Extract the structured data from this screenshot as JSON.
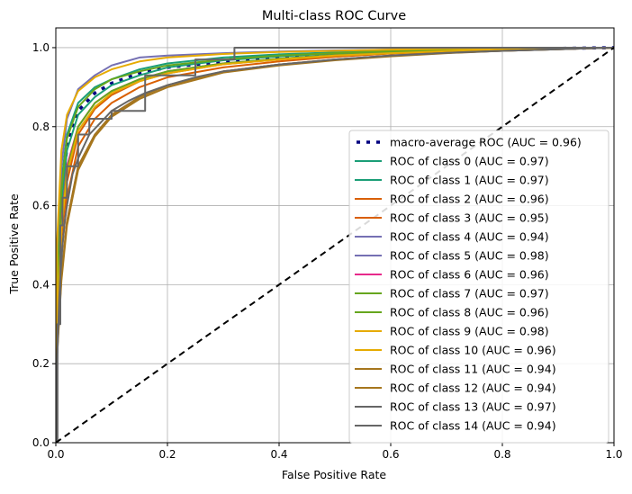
{
  "chart_data": {
    "type": "line",
    "title": "Multi-class ROC Curve",
    "xlabel": "False Positive Rate",
    "ylabel": "True Positive Rate",
    "xlim": [
      0.0,
      1.05
    ],
    "ylim": [
      0.0,
      1.05
    ],
    "xticks": [
      "0.0",
      "0.2",
      "0.4",
      "0.6",
      "0.8",
      "1.0"
    ],
    "yticks": [
      "0.0",
      "0.2",
      "0.4",
      "0.6",
      "0.8",
      "1.0"
    ],
    "grid": true,
    "legend_position": "lower-right",
    "diagonal": {
      "x": [
        0,
        1
      ],
      "y": [
        0,
        1
      ],
      "color": "#000000",
      "style": "dashed"
    },
    "series": [
      {
        "name": "macro-average ROC (AUC = 0.96)",
        "color": "#000080",
        "style": "dotted",
        "x": [
          0,
          0.002,
          0.01,
          0.02,
          0.04,
          0.07,
          0.1,
          0.15,
          0.2,
          0.3,
          0.4,
          0.5,
          0.6,
          0.7,
          0.8,
          0.9,
          1.0
        ],
        "y": [
          0,
          0.35,
          0.62,
          0.75,
          0.84,
          0.885,
          0.91,
          0.935,
          0.95,
          0.965,
          0.975,
          0.983,
          0.988,
          0.992,
          0.995,
          0.998,
          1.0
        ]
      },
      {
        "name": "ROC of class 0 (AUC = 0.97)",
        "color": "#1b9e77",
        "style": "solid",
        "x": [
          0,
          0.002,
          0.01,
          0.02,
          0.04,
          0.07,
          0.1,
          0.15,
          0.2,
          0.3,
          0.4,
          0.5,
          0.6,
          0.7,
          0.8,
          0.9,
          1.0
        ],
        "y": [
          0,
          0.4,
          0.66,
          0.78,
          0.86,
          0.9,
          0.92,
          0.945,
          0.96,
          0.975,
          0.983,
          0.988,
          0.992,
          0.995,
          0.997,
          0.999,
          1.0
        ]
      },
      {
        "name": "ROC of class 1 (AUC = 0.97)",
        "color": "#1b9e77",
        "style": "solid",
        "x": [
          0,
          0.002,
          0.01,
          0.02,
          0.04,
          0.07,
          0.1,
          0.15,
          0.2,
          0.3,
          0.4,
          0.5,
          0.6,
          0.7,
          0.8,
          0.9,
          1.0
        ],
        "y": [
          0,
          0.36,
          0.6,
          0.74,
          0.83,
          0.875,
          0.905,
          0.93,
          0.95,
          0.968,
          0.978,
          0.985,
          0.99,
          0.993,
          0.996,
          0.998,
          1.0
        ]
      },
      {
        "name": "ROC of class 2 (AUC = 0.96)",
        "color": "#d95f02",
        "style": "solid",
        "x": [
          0,
          0.002,
          0.01,
          0.02,
          0.04,
          0.07,
          0.1,
          0.15,
          0.2,
          0.3,
          0.4,
          0.5,
          0.6,
          0.7,
          0.8,
          0.9,
          1.0
        ],
        "y": [
          0,
          0.3,
          0.52,
          0.66,
          0.78,
          0.845,
          0.88,
          0.915,
          0.935,
          0.958,
          0.97,
          0.98,
          0.986,
          0.991,
          0.995,
          0.998,
          1.0
        ]
      },
      {
        "name": "ROC of class 3 (AUC = 0.95)",
        "color": "#d95f02",
        "style": "solid",
        "x": [
          0,
          0.002,
          0.01,
          0.02,
          0.04,
          0.07,
          0.1,
          0.15,
          0.2,
          0.3,
          0.4,
          0.5,
          0.6,
          0.7,
          0.8,
          0.9,
          1.0
        ],
        "y": [
          0,
          0.26,
          0.47,
          0.62,
          0.75,
          0.82,
          0.86,
          0.9,
          0.925,
          0.95,
          0.965,
          0.977,
          0.985,
          0.99,
          0.994,
          0.997,
          1.0
        ]
      },
      {
        "name": "ROC of class 4 (AUC = 0.94)",
        "color": "#7570b3",
        "style": "solid",
        "x": [
          0,
          0.002,
          0.01,
          0.02,
          0.04,
          0.07,
          0.1,
          0.15,
          0.2,
          0.3,
          0.4,
          0.5,
          0.6,
          0.7,
          0.8,
          0.9,
          1.0
        ],
        "y": [
          0,
          0.22,
          0.42,
          0.56,
          0.7,
          0.78,
          0.83,
          0.875,
          0.905,
          0.94,
          0.957,
          0.97,
          0.98,
          0.987,
          0.992,
          0.996,
          1.0
        ]
      },
      {
        "name": "ROC of class 5 (AUC = 0.98)",
        "color": "#7570b3",
        "style": "solid",
        "x": [
          0,
          0.002,
          0.01,
          0.02,
          0.04,
          0.07,
          0.1,
          0.15,
          0.2,
          0.3,
          0.4,
          0.5,
          0.6,
          0.7,
          0.8,
          0.9,
          1.0
        ],
        "y": [
          0,
          0.42,
          0.7,
          0.82,
          0.895,
          0.93,
          0.955,
          0.975,
          0.98,
          0.986,
          0.99,
          0.993,
          0.995,
          0.997,
          0.998,
          0.999,
          1.0
        ]
      },
      {
        "name": "ROC of class 6 (AUC = 0.96)",
        "color": "#e7298a",
        "style": "solid",
        "x": [
          0,
          0.002,
          0.01,
          0.02,
          0.04,
          0.07,
          0.1,
          0.15,
          0.2,
          0.3,
          0.4,
          0.5,
          0.6,
          0.7,
          0.8,
          0.9,
          1.0
        ],
        "y": [
          0,
          0.32,
          0.56,
          0.7,
          0.8,
          0.86,
          0.89,
          0.92,
          0.94,
          0.96,
          0.972,
          0.981,
          0.987,
          0.992,
          0.995,
          0.998,
          1.0
        ]
      },
      {
        "name": "ROC of class 7 (AUC = 0.97)",
        "color": "#66a61e",
        "style": "solid",
        "x": [
          0,
          0.002,
          0.01,
          0.02,
          0.04,
          0.07,
          0.1,
          0.15,
          0.2,
          0.3,
          0.4,
          0.5,
          0.6,
          0.7,
          0.8,
          0.9,
          1.0
        ],
        "y": [
          0,
          0.38,
          0.64,
          0.77,
          0.85,
          0.895,
          0.92,
          0.94,
          0.955,
          0.97,
          0.98,
          0.986,
          0.991,
          0.994,
          0.997,
          0.999,
          1.0
        ]
      },
      {
        "name": "ROC of class 8 (AUC = 0.96)",
        "color": "#66a61e",
        "style": "solid",
        "x": [
          0,
          0.002,
          0.01,
          0.02,
          0.04,
          0.07,
          0.1,
          0.15,
          0.2,
          0.3,
          0.4,
          0.5,
          0.6,
          0.7,
          0.8,
          0.9,
          1.0
        ],
        "y": [
          0,
          0.31,
          0.55,
          0.69,
          0.8,
          0.86,
          0.89,
          0.92,
          0.94,
          0.96,
          0.972,
          0.981,
          0.987,
          0.992,
          0.995,
          0.998,
          1.0
        ]
      },
      {
        "name": "ROC of class 9 (AUC = 0.98)",
        "color": "#e6ab02",
        "style": "solid",
        "x": [
          0,
          0.002,
          0.01,
          0.02,
          0.04,
          0.07,
          0.1,
          0.15,
          0.2,
          0.3,
          0.4,
          0.5,
          0.6,
          0.7,
          0.8,
          0.9,
          1.0
        ],
        "y": [
          0,
          0.5,
          0.74,
          0.83,
          0.89,
          0.925,
          0.945,
          0.965,
          0.975,
          0.984,
          0.989,
          0.992,
          0.995,
          0.997,
          0.998,
          0.999,
          1.0
        ]
      },
      {
        "name": "ROC of class 10 (AUC = 0.96)",
        "color": "#e6ab02",
        "style": "solid",
        "x": [
          0,
          0.002,
          0.01,
          0.02,
          0.04,
          0.07,
          0.1,
          0.15,
          0.2,
          0.3,
          0.4,
          0.5,
          0.6,
          0.7,
          0.8,
          0.9,
          1.0
        ],
        "y": [
          0,
          0.3,
          0.54,
          0.68,
          0.79,
          0.85,
          0.885,
          0.915,
          0.935,
          0.958,
          0.97,
          0.98,
          0.986,
          0.991,
          0.995,
          0.998,
          1.0
        ]
      },
      {
        "name": "ROC of class 11 (AUC = 0.94)",
        "color": "#a6761d",
        "style": "solid",
        "x": [
          0,
          0.002,
          0.01,
          0.02,
          0.04,
          0.07,
          0.1,
          0.15,
          0.2,
          0.3,
          0.4,
          0.5,
          0.6,
          0.7,
          0.8,
          0.9,
          1.0
        ],
        "y": [
          0,
          0.22,
          0.42,
          0.56,
          0.7,
          0.78,
          0.83,
          0.875,
          0.905,
          0.94,
          0.957,
          0.97,
          0.98,
          0.987,
          0.992,
          0.996,
          1.0
        ]
      },
      {
        "name": "ROC of class 12 (AUC = 0.94)",
        "color": "#a6761d",
        "style": "solid",
        "x": [
          0,
          0.002,
          0.01,
          0.02,
          0.04,
          0.07,
          0.1,
          0.15,
          0.2,
          0.3,
          0.4,
          0.5,
          0.6,
          0.7,
          0.8,
          0.9,
          1.0
        ],
        "y": [
          0,
          0.21,
          0.41,
          0.55,
          0.69,
          0.775,
          0.825,
          0.87,
          0.9,
          0.937,
          0.955,
          0.968,
          0.978,
          0.986,
          0.992,
          0.996,
          1.0
        ]
      },
      {
        "name": "ROC of class 13 (AUC = 0.97)",
        "color": "#666666",
        "style": "solid",
        "x": [
          0,
          0.003,
          0.003,
          0.008,
          0.008,
          0.012,
          0.012,
          0.02,
          0.02,
          0.04,
          0.04,
          0.06,
          0.06,
          0.1,
          0.1,
          0.16,
          0.16,
          0.25,
          0.25,
          0.32,
          0.32,
          0.6,
          0.6,
          1.0
        ],
        "y": [
          0,
          0,
          0.3,
          0.3,
          0.55,
          0.55,
          0.62,
          0.62,
          0.7,
          0.7,
          0.78,
          0.78,
          0.82,
          0.82,
          0.84,
          0.84,
          0.93,
          0.93,
          0.97,
          0.97,
          1.0,
          1.0,
          1.0,
          1.0
        ]
      },
      {
        "name": "ROC of class 14 (AUC = 0.94)",
        "color": "#666666",
        "style": "solid",
        "x": [
          0,
          0.002,
          0.004,
          0.006,
          0.008,
          0.012,
          0.016,
          0.02,
          0.025,
          0.03,
          0.04,
          0.05,
          0.06,
          0.08,
          0.1,
          0.13,
          0.16,
          0.2,
          0.25,
          0.3,
          0.4,
          0.5,
          0.6,
          0.7,
          0.8,
          0.9,
          1.0
        ],
        "y": [
          0,
          0.18,
          0.28,
          0.36,
          0.42,
          0.5,
          0.56,
          0.6,
          0.64,
          0.68,
          0.72,
          0.75,
          0.78,
          0.81,
          0.84,
          0.865,
          0.885,
          0.905,
          0.925,
          0.94,
          0.957,
          0.97,
          0.98,
          0.987,
          0.992,
          0.996,
          1.0
        ]
      }
    ]
  }
}
